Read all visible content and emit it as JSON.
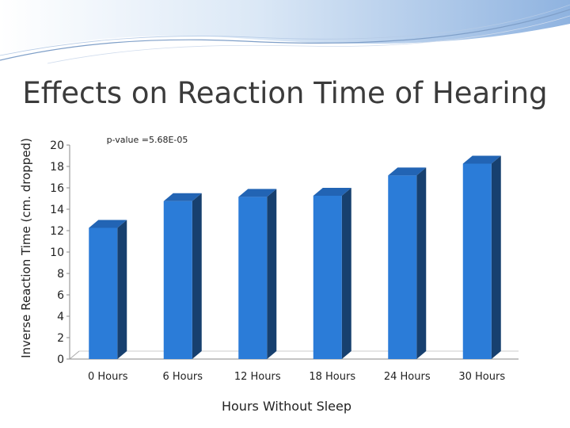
{
  "slide": {
    "title": "Effects on Reaction Time of Hearing"
  },
  "chart_data": {
    "type": "bar",
    "title": "Effects on Reaction Time of Hearing",
    "annotation": "p-value =5.68E-05",
    "xlabel": "Hours Without Sleep",
    "ylabel": "Inverse Reaction Time (cm. dropped)",
    "categories": [
      "0 Hours",
      "6 Hours",
      "12 Hours",
      "18 Hours",
      "24 Hours",
      "30 Hours"
    ],
    "values": [
      13,
      15.5,
      15.9,
      16,
      17.9,
      19
    ],
    "ylim": [
      0,
      20
    ],
    "yticks": [
      "0",
      "2",
      "4",
      "6",
      "8",
      "10",
      "12",
      "14",
      "16",
      "18",
      "20"
    ],
    "grid": false,
    "legend": "none",
    "style": "3d-column"
  },
  "colors": {
    "bar_front": "#2b7cd8",
    "bar_top": "#2264b4",
    "bar_side": "#17406f",
    "header_wave": "#a9c7ea"
  }
}
